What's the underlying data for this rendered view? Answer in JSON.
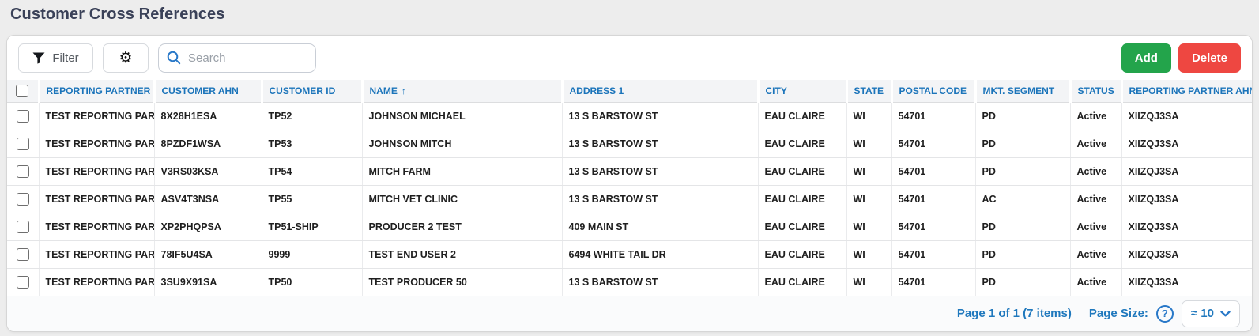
{
  "page": {
    "title": "Customer Cross References"
  },
  "toolbar": {
    "filter_label": "Filter",
    "filter_icon": "funnel-icon",
    "settings_icon": "gear-icon",
    "settings_glyph": "⚙",
    "search_placeholder": "Search",
    "add_label": "Add",
    "delete_label": "Delete"
  },
  "table": {
    "sort": {
      "column": "name",
      "direction": "ascending",
      "icon": "↑"
    },
    "columns": [
      {
        "key": "reporting_partner",
        "label": "REPORTING PARTNER"
      },
      {
        "key": "customer_ahn",
        "label": "CUSTOMER AHN"
      },
      {
        "key": "customer_id",
        "label": "CUSTOMER ID"
      },
      {
        "key": "name",
        "label": "NAME"
      },
      {
        "key": "address1",
        "label": "ADDRESS 1"
      },
      {
        "key": "city",
        "label": "CITY"
      },
      {
        "key": "state",
        "label": "STATE"
      },
      {
        "key": "postal_code",
        "label": "POSTAL CODE"
      },
      {
        "key": "mkt_segment",
        "label": "MKT. SEGMENT"
      },
      {
        "key": "status",
        "label": "STATUS"
      },
      {
        "key": "reporting_partner_ahn",
        "label": "REPORTING PARTNER AHN"
      }
    ],
    "rows": [
      {
        "reporting_partner": "TEST REPORTING PARTNER",
        "customer_ahn": "8X28H1ESA",
        "customer_id": "TP52",
        "name": "JOHNSON MICHAEL",
        "address1": "13 S BARSTOW ST",
        "city": "EAU CLAIRE",
        "state": "WI",
        "postal_code": "54701",
        "mkt_segment": "PD",
        "status": "Active",
        "reporting_partner_ahn": "XIIZQJ3SA"
      },
      {
        "reporting_partner": "TEST REPORTING PARTNER",
        "customer_ahn": "8PZDF1WSA",
        "customer_id": "TP53",
        "name": "JOHNSON MITCH",
        "address1": "13 S BARSTOW ST",
        "city": "EAU CLAIRE",
        "state": "WI",
        "postal_code": "54701",
        "mkt_segment": "PD",
        "status": "Active",
        "reporting_partner_ahn": "XIIZQJ3SA"
      },
      {
        "reporting_partner": "TEST REPORTING PARTNER",
        "customer_ahn": "V3RS03KSA",
        "customer_id": "TP54",
        "name": "MITCH FARM",
        "address1": "13 S BARSTOW ST",
        "city": "EAU CLAIRE",
        "state": "WI",
        "postal_code": "54701",
        "mkt_segment": "PD",
        "status": "Active",
        "reporting_partner_ahn": "XIIZQJ3SA"
      },
      {
        "reporting_partner": "TEST REPORTING PARTNER",
        "customer_ahn": "ASV4T3NSA",
        "customer_id": "TP55",
        "name": "MITCH VET CLINIC",
        "address1": "13 S BARSTOW ST",
        "city": "EAU CLAIRE",
        "state": "WI",
        "postal_code": "54701",
        "mkt_segment": "AC",
        "status": "Active",
        "reporting_partner_ahn": "XIIZQJ3SA"
      },
      {
        "reporting_partner": "TEST REPORTING PARTNER",
        "customer_ahn": "XP2PHQPSA",
        "customer_id": "TP51-SHIP",
        "name": "PRODUCER 2 TEST",
        "address1": "409 MAIN ST",
        "city": "EAU CLAIRE",
        "state": "WI",
        "postal_code": "54701",
        "mkt_segment": "PD",
        "status": "Active",
        "reporting_partner_ahn": "XIIZQJ3SA"
      },
      {
        "reporting_partner": "TEST REPORTING PARTNER",
        "customer_ahn": "78IF5U4SA",
        "customer_id": "9999",
        "name": "TEST END USER 2",
        "address1": "6494 WHITE TAIL DR",
        "city": "EAU CLAIRE",
        "state": "WI",
        "postal_code": "54701",
        "mkt_segment": "PD",
        "status": "Active",
        "reporting_partner_ahn": "XIIZQJ3SA"
      },
      {
        "reporting_partner": "TEST REPORTING PARTNER",
        "customer_ahn": "3SU9X91SA",
        "customer_id": "TP50",
        "name": "TEST PRODUCER 50",
        "address1": "13 S BARSTOW ST",
        "city": "EAU CLAIRE",
        "state": "WI",
        "postal_code": "54701",
        "mkt_segment": "PD",
        "status": "Active",
        "reporting_partner_ahn": "XIIZQJ3SA"
      }
    ]
  },
  "footer": {
    "page_info": "Page 1 of 1 (7 items)",
    "page_size_label": "Page Size:",
    "help_glyph": "?",
    "page_size_value": "≈ 10"
  },
  "colors": {
    "accent_blue": "#1b74ba",
    "footer_blue": "#1f78bd",
    "add_green": "#23a44b",
    "delete_red": "#ee4741",
    "title_navy": "#3a4158",
    "page_background": "#ededed"
  }
}
